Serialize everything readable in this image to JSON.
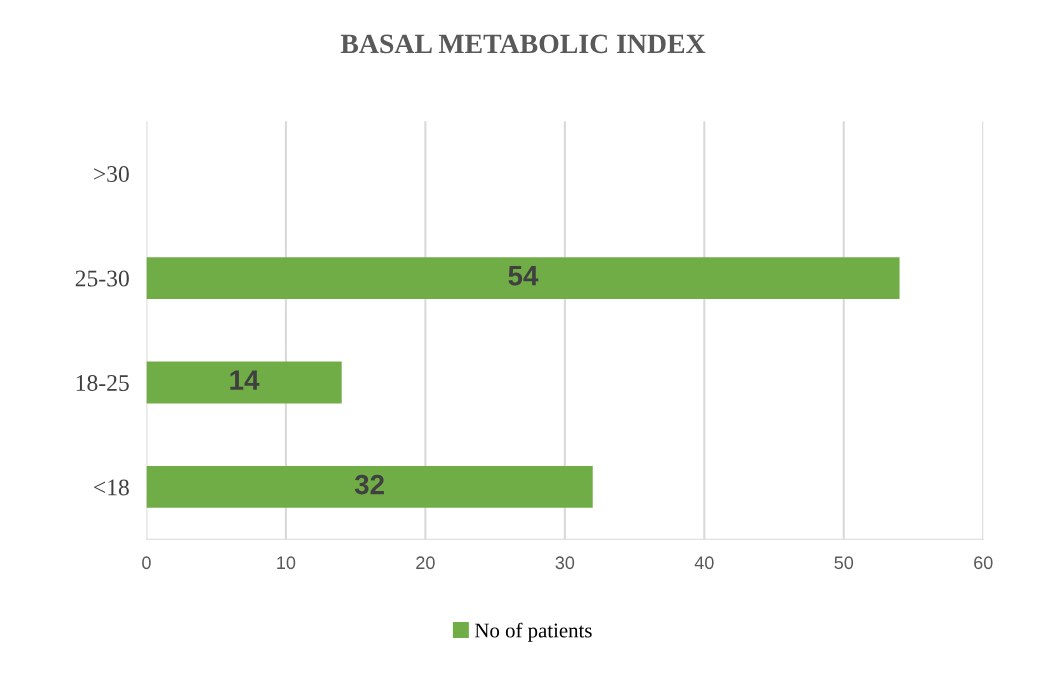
{
  "chart_data": {
    "type": "bar",
    "orientation": "horizontal",
    "title": "BASAL METABOLIC INDEX",
    "categories": [
      ">30",
      "25-30",
      "18-25",
      "<18"
    ],
    "series": [
      {
        "name": "No of patients",
        "color": "#70ad47",
        "values": [
          0,
          54,
          14,
          32
        ],
        "value_labels": [
          null,
          "54",
          "14",
          "32"
        ]
      }
    ],
    "xlim": [
      0,
      60
    ],
    "xticks": [
      0,
      10,
      20,
      30,
      40,
      50,
      60
    ],
    "grid": "x",
    "legend": "bottom"
  }
}
